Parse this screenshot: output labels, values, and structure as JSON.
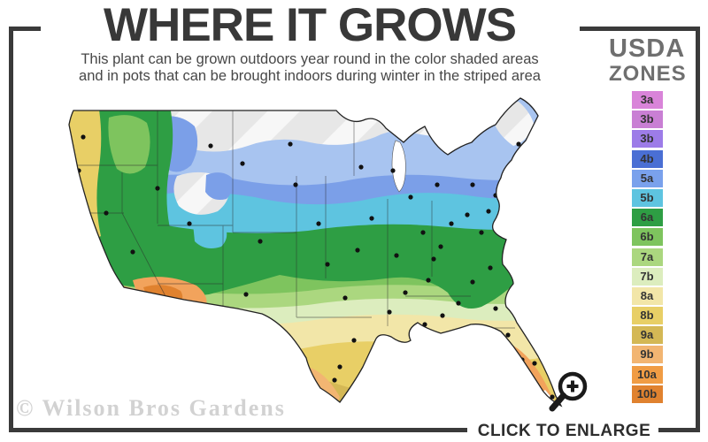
{
  "header": {
    "title": "WHERE IT GROWS",
    "subtitle_line1": "This plant can be grown outdoors year round in the color shaded areas",
    "subtitle_line2": "and in pots that can be brought indoors during winter in the striped area"
  },
  "legend": {
    "title_line1": "USDA",
    "title_line2": "ZONES",
    "zones": [
      {
        "label": "3a",
        "color": "#d984d9"
      },
      {
        "label": "3b",
        "color": "#c97fd4"
      },
      {
        "label": "3b",
        "color": "#9d7ce8"
      },
      {
        "label": "4b",
        "color": "#4a6fd4"
      },
      {
        "label": "5a",
        "color": "#7aa1ec"
      },
      {
        "label": "5b",
        "color": "#5ec4e0"
      },
      {
        "label": "6a",
        "color": "#2e9e44"
      },
      {
        "label": "6b",
        "color": "#7ec45e"
      },
      {
        "label": "7a",
        "color": "#abd77f"
      },
      {
        "label": "7b",
        "color": "#dcedbe"
      },
      {
        "label": "8a",
        "color": "#f2e6a8"
      },
      {
        "label": "8b",
        "color": "#e8cf66"
      },
      {
        "label": "9a",
        "color": "#d4b855"
      },
      {
        "label": "9b",
        "color": "#f2b572"
      },
      {
        "label": "10a",
        "color": "#f09c44"
      },
      {
        "label": "10b",
        "color": "#e0822f"
      }
    ]
  },
  "footer": {
    "watermark": "© Wilson Bros Gardens",
    "enlarge_label": "CLICK TO ENLARGE"
  },
  "icons": {
    "magnifier": "magnifier-plus-icon"
  }
}
